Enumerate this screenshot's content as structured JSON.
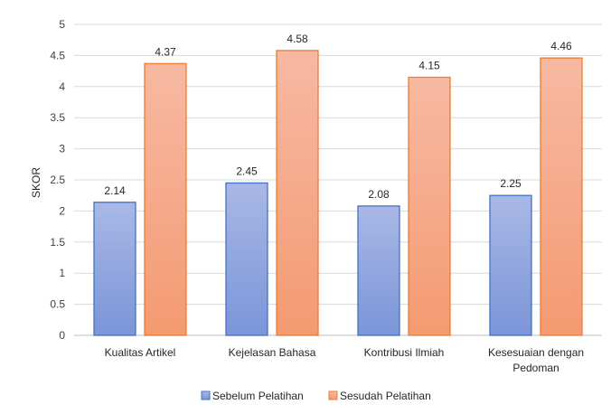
{
  "chart_data": {
    "type": "bar",
    "title": "",
    "xlabel": "",
    "ylabel": "SKOR",
    "ylim": [
      0,
      5
    ],
    "yticks": [
      "0",
      "0.5",
      "1",
      "1.5",
      "2",
      "2.5",
      "3",
      "3.5",
      "4",
      "4.5",
      "5"
    ],
    "categories": [
      "Kualitas Artikel",
      "Kejelasan Bahasa",
      "Kontribusi Ilmiah",
      "Kesesuaian dengan Pedoman"
    ],
    "series": [
      {
        "name": "Sebelum Pelatihan",
        "values": [
          2.14,
          2.45,
          2.08,
          2.25
        ],
        "labels": [
          "2.14",
          "2.45",
          "2.08",
          "2.25"
        ],
        "color_top": "#a9b8e6",
        "color_bottom": "#7b95d8",
        "border": "#4472c4"
      },
      {
        "name": "Sesudah Pelatihan",
        "values": [
          4.37,
          4.58,
          4.15,
          4.46
        ],
        "labels": [
          "4.37",
          "4.58",
          "4.15",
          "4.46"
        ],
        "color_top": "#f7b9a2",
        "color_bottom": "#f49a72",
        "border": "#ed7d31"
      }
    ],
    "grid": true,
    "legend_position": "bottom"
  }
}
